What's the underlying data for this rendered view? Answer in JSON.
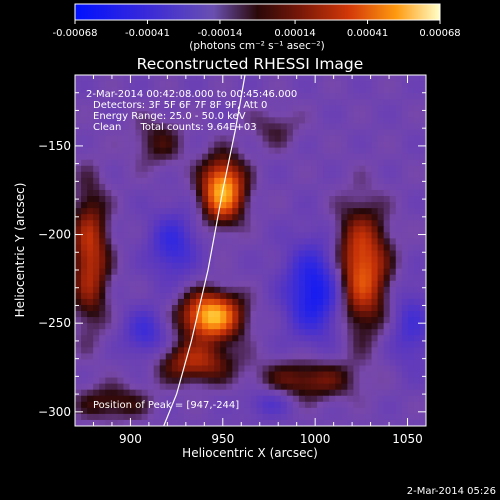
{
  "colorbar": {
    "ticks": [
      "-0.00068",
      "-0.00041",
      "-0.00014",
      "0.00014",
      "0.00041",
      "0.00068"
    ],
    "tick_values": [
      -0.00068,
      -0.00041,
      -0.00014,
      0.00014,
      0.00041,
      0.00068
    ],
    "range": [
      -0.00068,
      0.00068
    ],
    "units_label": "(photons cm⁻² s⁻¹ asec⁻²)"
  },
  "chart_data": {
    "type": "heatmap",
    "title": "Reconstructed RHESSI Image",
    "xlabel": "Heliocentric X (arcsec)",
    "ylabel": "Heliocentric Y (arcsec)",
    "xlim": [
      870,
      1060
    ],
    "ylim": [
      -308,
      -110
    ],
    "x_ticks": [
      900,
      950,
      1000,
      1050
    ],
    "y_ticks": [
      -150,
      -200,
      -250,
      -300
    ],
    "x_tick_labels": [
      "900",
      "950",
      "1000",
      "1050"
    ],
    "y_tick_labels": [
      "−150",
      "−200",
      "−250",
      "−300"
    ],
    "annotations": [
      "2-Mar-2014 00:42:08.000 to 00:45:46.000",
      "Detectors: 3F 5F 6F 7F 8F 9F, Att 0",
      "Energy Range: 25.0 - 50.0 keV",
      "Clean      Total counts: 9.64E+03"
    ],
    "peak_label": "Position of Peak = [947,-244]",
    "peak_position": [
      947,
      -244
    ],
    "sources": [
      {
        "x": 950,
        "y": -175,
        "sx": 8,
        "sy": 12,
        "amp": 0.00066
      },
      {
        "x": 944,
        "y": -246,
        "sx": 11,
        "sy": 9,
        "amp": 0.00068
      },
      {
        "x": 935,
        "y": -272,
        "sx": 14,
        "sy": 8,
        "amp": 0.00034
      },
      {
        "x": 1025,
        "y": -220,
        "sx": 10,
        "sy": 23,
        "amp": 0.0005
      },
      {
        "x": 996,
        "y": -282,
        "sx": 18,
        "sy": 8,
        "amp": 0.00026
      },
      {
        "x": 878,
        "y": -212,
        "sx": 7,
        "sy": 26,
        "amp": 0.00038
      },
      {
        "x": 890,
        "y": -295,
        "sx": 14,
        "sy": 7,
        "amp": 0.0002
      },
      {
        "x": 915,
        "y": -148,
        "sx": 10,
        "sy": 10,
        "amp": 0.00016
      },
      {
        "x": 978,
        "y": -140,
        "sx": 10,
        "sy": 8,
        "amp": 0.00012
      },
      {
        "x": 1000,
        "y": -232,
        "sx": 11,
        "sy": 18,
        "amp": -0.00046
      },
      {
        "x": 923,
        "y": -206,
        "sx": 9,
        "sy": 13,
        "amp": -0.0003
      },
      {
        "x": 908,
        "y": -256,
        "sx": 8,
        "sy": 10,
        "amp": -0.00026
      },
      {
        "x": 1052,
        "y": -252,
        "sx": 8,
        "sy": 16,
        "amp": -0.00022
      },
      {
        "x": 975,
        "y": -295,
        "sx": 9,
        "sy": 6,
        "amp": -0.00018
      }
    ],
    "limb_curve": [
      [
        918,
        -308
      ],
      [
        925,
        -290
      ],
      [
        933,
        -260
      ],
      [
        942,
        -220
      ],
      [
        950,
        -175
      ],
      [
        957,
        -140
      ],
      [
        962,
        -110
      ]
    ],
    "grid": false
  },
  "footer": {
    "date": "2-Mar-2014 05:26"
  }
}
